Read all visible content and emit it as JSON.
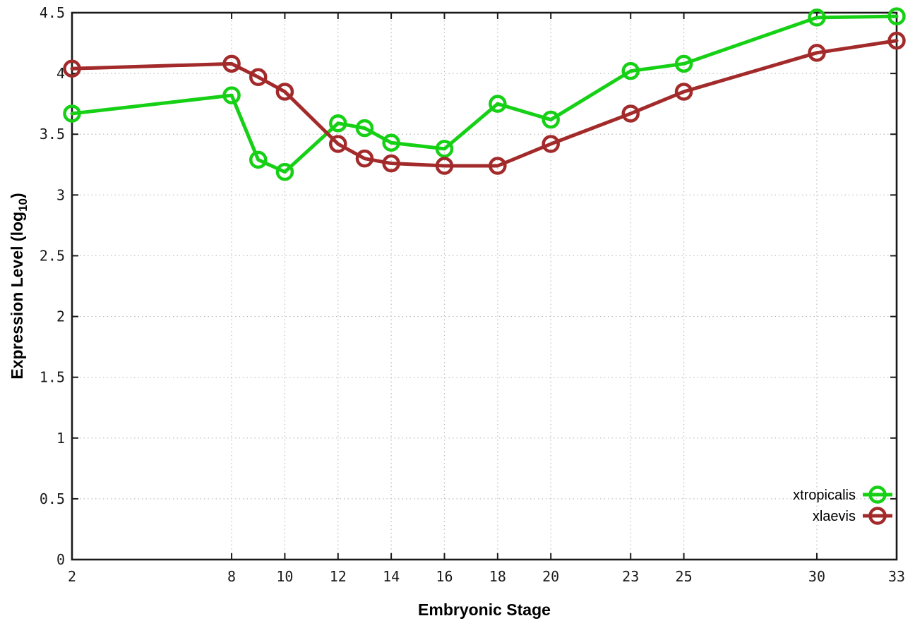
{
  "chart_data": {
    "type": "line",
    "title": "",
    "xlabel": "Embryonic Stage",
    "ylabel": "Expression Level (log10)",
    "ylabel_parts": {
      "prefix": "Expression Level (log",
      "sub": "10",
      "suffix": ")"
    },
    "x": [
      2,
      8,
      9,
      10,
      12,
      13,
      14,
      16,
      18,
      20,
      23,
      25,
      30,
      33
    ],
    "series": [
      {
        "name": "xtropicalis",
        "color": "#16d016",
        "values": [
          3.67,
          3.82,
          3.29,
          3.19,
          3.59,
          3.55,
          3.43,
          3.38,
          3.75,
          3.62,
          4.02,
          4.08,
          4.46,
          4.47
        ]
      },
      {
        "name": "xlaevis",
        "color": "#a32a2a",
        "values": [
          4.04,
          4.08,
          3.97,
          3.85,
          3.42,
          3.3,
          3.26,
          3.24,
          3.24,
          3.42,
          3.67,
          3.85,
          4.17,
          4.27
        ]
      }
    ],
    "xlim": [
      2,
      33
    ],
    "ylim": [
      0,
      4.5
    ],
    "x_tick_values": [
      2,
      8,
      10,
      12,
      14,
      16,
      18,
      20,
      23,
      25,
      30,
      33
    ],
    "x_tick_labels": [
      "2",
      "8",
      "10",
      "12",
      "14",
      "16",
      "18",
      "20",
      "23",
      "25",
      "30",
      "33"
    ],
    "y_tick_values": [
      0,
      0.5,
      1,
      1.5,
      2,
      2.5,
      3,
      3.5,
      4,
      4.5
    ],
    "y_tick_labels": [
      "0",
      "0.5",
      "1",
      "1.5",
      "2",
      "2.5",
      "3",
      "3.5",
      "4",
      "4.5"
    ],
    "grid": true,
    "legend_position": "bottom-right-inside",
    "marker": "open-circle"
  },
  "colors": {
    "background": "#ffffff",
    "border": "#1a1a1a",
    "grid": "#bcbcbc",
    "tick_text": "#1a1a1a",
    "xtropicalis_green": "#16d016",
    "xlaevis_red": "#a32a2a"
  }
}
